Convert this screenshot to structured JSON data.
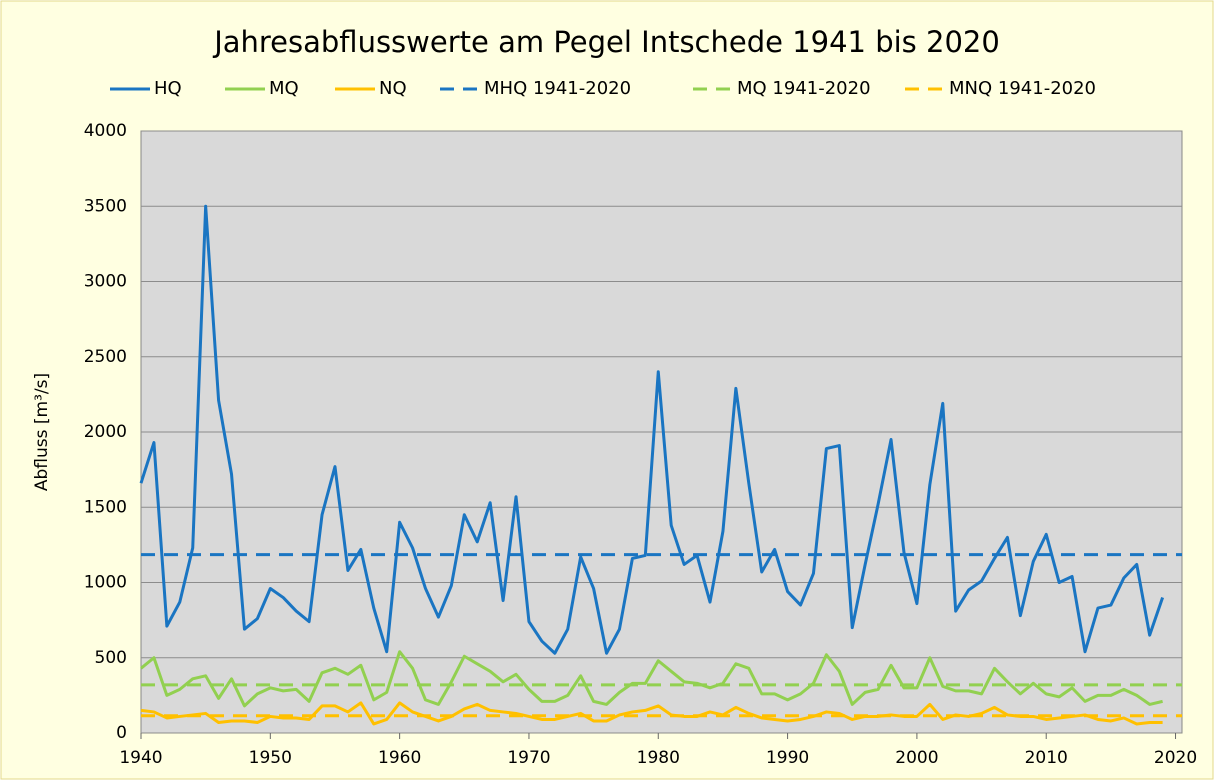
{
  "chart_data": {
    "type": "line",
    "title": "Jahresabflusswerte am Pegel Intschede 1941 bis 2020",
    "y_label": "Abfluss [m³/s]",
    "x": [
      1940,
      1941,
      1942,
      1943,
      1944,
      1945,
      1946,
      1947,
      1948,
      1949,
      1950,
      1951,
      1952,
      1953,
      1954,
      1955,
      1956,
      1957,
      1958,
      1959,
      1960,
      1961,
      1962,
      1963,
      1964,
      1965,
      1966,
      1967,
      1968,
      1969,
      1970,
      1971,
      1972,
      1973,
      1974,
      1975,
      1976,
      1977,
      1978,
      1979,
      1980,
      1981,
      1982,
      1983,
      1984,
      1985,
      1986,
      1987,
      1988,
      1989,
      1990,
      1991,
      1992,
      1993,
      1994,
      1995,
      1996,
      1997,
      1998,
      1999,
      2000,
      2001,
      2002,
      2003,
      2004,
      2005,
      2006,
      2007,
      2008,
      2009,
      2010,
      2011,
      2012,
      2013,
      2014,
      2015,
      2016,
      2017,
      2018,
      2019
    ],
    "series": [
      {
        "name": "HQ",
        "color": "#1a75c2",
        "values": [
          1660,
          1930,
          710,
          870,
          1230,
          3500,
          2210,
          1720,
          690,
          760,
          960,
          900,
          810,
          740,
          1450,
          1770,
          1080,
          1220,
          830,
          540,
          1400,
          1230,
          960,
          770,
          980,
          1450,
          1270,
          1530,
          880,
          1570,
          740,
          610,
          530,
          690,
          1170,
          960,
          530,
          690,
          1160,
          1180,
          2400,
          1380,
          1120,
          1180,
          870,
          1340,
          2290,
          1660,
          1070,
          1220,
          940,
          850,
          1060,
          1890,
          1910,
          700,
          1120,
          1520,
          1950,
          1200,
          860,
          1650,
          2190,
          810,
          950,
          1010,
          1160,
          1300,
          780,
          1140,
          1320,
          1000,
          1040,
          540,
          830,
          850,
          1030,
          1120,
          650,
          900
        ]
      },
      {
        "name": "MQ",
        "color": "#92d050",
        "values": [
          430,
          500,
          250,
          290,
          360,
          380,
          230,
          360,
          180,
          260,
          300,
          280,
          290,
          210,
          400,
          430,
          390,
          450,
          220,
          270,
          540,
          430,
          220,
          190,
          340,
          510,
          460,
          410,
          340,
          390,
          290,
          210,
          210,
          250,
          380,
          210,
          190,
          270,
          330,
          330,
          480,
          410,
          340,
          330,
          300,
          330,
          460,
          430,
          260,
          260,
          220,
          260,
          330,
          520,
          410,
          190,
          270,
          290,
          450,
          300,
          300,
          500,
          310,
          280,
          280,
          260,
          430,
          340,
          260,
          330,
          260,
          240,
          300,
          210,
          250,
          250,
          290,
          250,
          190,
          210
        ]
      },
      {
        "name": "NQ",
        "color": "#ffc000",
        "values": [
          150,
          140,
          100,
          110,
          120,
          130,
          70,
          80,
          80,
          70,
          110,
          100,
          100,
          90,
          180,
          180,
          140,
          200,
          60,
          90,
          200,
          140,
          110,
          80,
          110,
          160,
          190,
          150,
          140,
          130,
          110,
          90,
          90,
          110,
          130,
          80,
          80,
          120,
          140,
          150,
          180,
          120,
          110,
          110,
          140,
          120,
          170,
          130,
          100,
          90,
          80,
          90,
          110,
          140,
          130,
          90,
          110,
          110,
          120,
          110,
          110,
          190,
          90,
          120,
          110,
          130,
          170,
          120,
          110,
          110,
          90,
          100,
          110,
          120,
          90,
          80,
          100,
          60,
          70,
          70
        ]
      }
    ],
    "reference_lines": [
      {
        "name": "MHQ 1941-2020",
        "color": "#1a75c2",
        "value": 1185
      },
      {
        "name": "MQ 1941-2020",
        "color": "#92d050",
        "value": 320
      },
      {
        "name": "MNQ 1941-2020",
        "color": "#ffc000",
        "value": 115
      }
    ],
    "xlim": [
      1940,
      2020.5
    ],
    "ylim": [
      0,
      4000
    ],
    "xticks": [
      1940,
      1950,
      1960,
      1970,
      1980,
      1990,
      2000,
      2010,
      2020
    ],
    "yticks": [
      0,
      500,
      1000,
      1500,
      2000,
      2500,
      3000,
      3500,
      4000
    ],
    "grid": true
  }
}
